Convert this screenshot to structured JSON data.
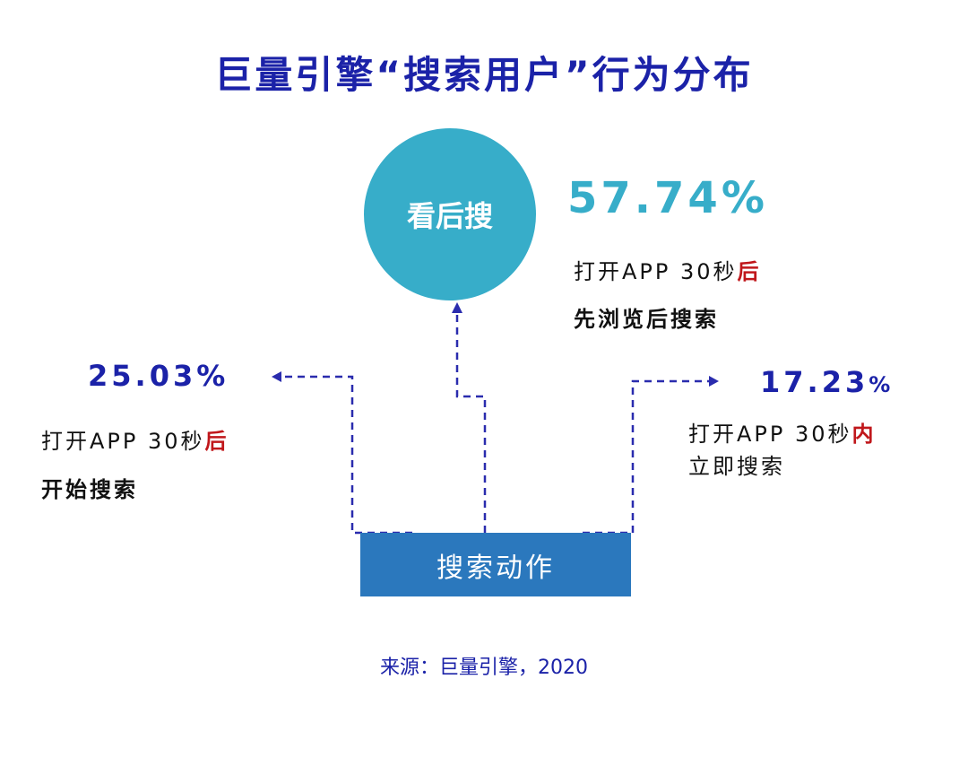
{
  "title": "巨量引擎“搜索用户”行为分布",
  "center_node": {
    "label": "看后搜"
  },
  "top_group": {
    "percent": "57.74%",
    "line1_prefix": "打开APP 30秒",
    "line1_highlight": "后",
    "line2": "先浏览后搜索"
  },
  "left_group": {
    "percent": "25.03%",
    "line1_prefix": "打开APP 30秒",
    "line1_highlight": "后",
    "line2": "开始搜索"
  },
  "right_group": {
    "percent_number": "17.23",
    "percent_unit": "%",
    "line1_prefix": "打开APP 30秒",
    "line1_highlight": "内",
    "line2": "立即搜索"
  },
  "bottom_box": {
    "label": "搜索动作"
  },
  "source": "来源：巨量引擎，2020",
  "colors": {
    "title": "#1b22a8",
    "circle": "#37adc9",
    "teal_percent": "#37adc9",
    "navy_percent": "#1b22a8",
    "highlight": "#c0171b",
    "box": "#2b78bd",
    "connector": "#2a2cae"
  }
}
